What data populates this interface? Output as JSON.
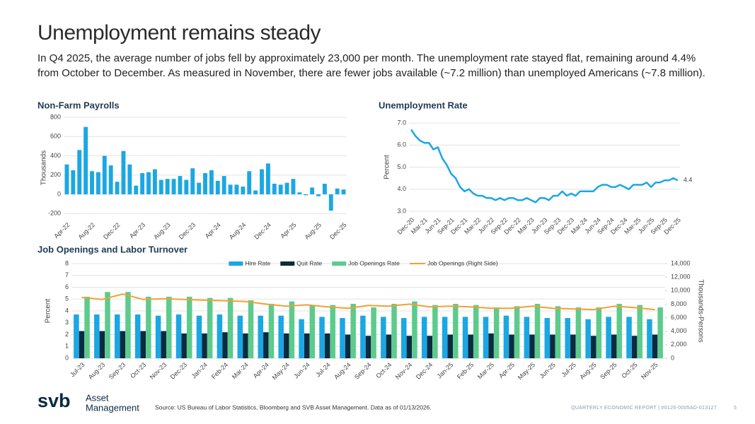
{
  "header": {
    "title": "Unemployment remains steady",
    "subtitle": "In Q4 2025, the average number of jobs fell by approximately 23,000 per month. The unemployment rate stayed flat, remaining around 4.4% from October to December. As measured in November, there are fewer jobs available (~7.2 million) than unemployed Americans (~7.8 million)."
  },
  "chart_data": [
    {
      "type": "bar",
      "title": "Non-Farm Payrolls",
      "y_label": "Thousands",
      "color": "#1ba7e4",
      "grid": true,
      "categories": [
        "Apr-22",
        null,
        null,
        null,
        "Aug-22",
        null,
        null,
        null,
        "Dec-22",
        null,
        null,
        null,
        "Apr-23",
        null,
        null,
        null,
        "Aug-23",
        null,
        null,
        null,
        "Dec-23",
        null,
        null,
        null,
        "Apr-24",
        null,
        null,
        null,
        "Aug-24",
        null,
        null,
        null,
        "Dec-24",
        null,
        null,
        null,
        "Apr-25",
        null,
        null,
        null,
        "Aug-25",
        null,
        null,
        null,
        "Dec-25"
      ],
      "values": [
        310,
        250,
        460,
        700,
        240,
        230,
        400,
        300,
        130,
        450,
        310,
        90,
        220,
        230,
        260,
        150,
        160,
        160,
        190,
        150,
        270,
        120,
        220,
        250,
        140,
        190,
        100,
        100,
        80,
        240,
        40,
        260,
        320,
        110,
        100,
        120,
        160,
        20,
        -10,
        70,
        -20,
        110,
        -170,
        60,
        50
      ],
      "ylim": [
        -250,
        800
      ],
      "yticks": [
        -200,
        0,
        200,
        400,
        600,
        800
      ]
    },
    {
      "type": "line",
      "title": "Unemployment Rate",
      "y_label": "Percent",
      "color": "#1ba7e4",
      "grid": true,
      "label_last": true,
      "categories": [
        "Dec-20",
        null,
        null,
        "Mar-21",
        null,
        null,
        "Jun-21",
        null,
        null,
        "Sep-21",
        null,
        null,
        "Dec-21",
        null,
        null,
        "Mar-22",
        null,
        null,
        "Jun-22",
        null,
        null,
        "Sep-22",
        null,
        null,
        "Dec-22",
        null,
        null,
        "Mar-23",
        null,
        null,
        "Jun-23",
        null,
        null,
        "Sep-23",
        null,
        null,
        "Dec-23",
        null,
        null,
        "Mar-24",
        null,
        null,
        "Jun-24",
        null,
        null,
        "Sep-24",
        null,
        null,
        "Dec-24",
        null,
        null,
        "Mar-25",
        null,
        null,
        "Jun-25",
        null,
        null,
        "Sep-25",
        null,
        null,
        "Dec-25"
      ],
      "values": [
        6.7,
        6.4,
        6.2,
        6.1,
        6.1,
        5.8,
        5.9,
        5.4,
        5.1,
        4.7,
        4.5,
        4.1,
        3.9,
        4.0,
        3.8,
        3.7,
        3.7,
        3.6,
        3.6,
        3.5,
        3.6,
        3.5,
        3.6,
        3.6,
        3.5,
        3.5,
        3.6,
        3.5,
        3.4,
        3.6,
        3.6,
        3.5,
        3.7,
        3.7,
        3.9,
        3.7,
        3.8,
        3.7,
        3.9,
        3.9,
        3.9,
        3.9,
        4.1,
        4.2,
        4.2,
        4.1,
        4.1,
        4.2,
        4.1,
        4.0,
        4.2,
        4.2,
        4.2,
        4.3,
        4.1,
        4.3,
        4.3,
        4.4,
        4.4,
        4.5,
        4.4
      ],
      "ylim": [
        2.9,
        7.1
      ],
      "yticks": [
        {
          "value": 3,
          "label": "3.0"
        },
        {
          "value": 4,
          "label": "4.0"
        },
        {
          "value": 5,
          "label": "5.0"
        },
        {
          "value": 6,
          "label": "6.0"
        },
        {
          "value": 7,
          "label": "7.0"
        }
      ]
    },
    {
      "type": "combo",
      "title": "Job Openings and Labor Turnover",
      "y_label": "Percent",
      "y2_label": "Thousands-Persons",
      "grid": true,
      "legend": "top",
      "categories": [
        "Jul-23",
        "Aug-23",
        "Sep-23",
        "Oct-23",
        "Nov-23",
        "Dec-23",
        "Jan-24",
        "Feb-24",
        "Mar-24",
        "Apr-24",
        "May-24",
        "Jun-24",
        "Jul-24",
        "Aug-24",
        "Sep-24",
        "Oct-24",
        "Nov-24",
        "Dec-24",
        "Jan-25",
        "Feb-25",
        "Mar-25",
        "Apr-25",
        "May-25",
        "Jun-25",
        "Jul-25",
        "Aug-25",
        "Sep-25",
        "Oct-25",
        "Nov-25"
      ],
      "series": [
        {
          "name": "Hire Rate",
          "type": "bar",
          "color": "#1ba7e4",
          "values": [
            3.7,
            3.7,
            3.7,
            3.7,
            3.6,
            3.7,
            3.6,
            3.7,
            3.6,
            3.6,
            3.6,
            3.3,
            3.5,
            3.4,
            3.6,
            3.5,
            3.4,
            3.5,
            3.5,
            3.5,
            3.5,
            3.6,
            3.5,
            3.4,
            3.4,
            3.3,
            3.5,
            3.5,
            3.3
          ]
        },
        {
          "name": "Quit Rate",
          "type": "bar",
          "color": "#0b2b40",
          "values": [
            2.3,
            2.3,
            2.3,
            2.3,
            2.3,
            2.1,
            2.1,
            2.2,
            2.1,
            2.2,
            2.1,
            2.1,
            2.1,
            2.0,
            1.9,
            2.0,
            1.9,
            1.9,
            2.0,
            2.0,
            2.1,
            2.0,
            2.0,
            2.0,
            2.0,
            1.9,
            2.0,
            1.9,
            2.0
          ]
        },
        {
          "name": "Job Openings Rate",
          "type": "bar",
          "color": "#5ccb8c",
          "values": [
            5.2,
            5.6,
            5.6,
            5.2,
            5.2,
            5.2,
            5.1,
            5.1,
            4.9,
            4.6,
            4.8,
            4.5,
            4.5,
            4.6,
            4.3,
            4.6,
            4.8,
            4.5,
            4.6,
            4.5,
            4.3,
            4.4,
            4.6,
            4.4,
            4.3,
            4.3,
            4.6,
            4.5,
            4.3
          ]
        },
        {
          "name": "Job Openings (Right Side)",
          "type": "line",
          "axis": "y2",
          "color": "#f2a033",
          "values": [
            9000,
            8700,
            9500,
            8700,
            8800,
            8700,
            8600,
            8500,
            8400,
            8000,
            7700,
            7900,
            7600,
            7400,
            7800,
            7700,
            8000,
            7600,
            7700,
            7600,
            7400,
            7400,
            7700,
            7400,
            7300,
            7200,
            7700,
            7500,
            7200
          ]
        }
      ],
      "ylim": [
        0,
        8
      ],
      "yticks": [
        0,
        1,
        2,
        3,
        4,
        5,
        6,
        7,
        8
      ],
      "y2lim": [
        0,
        14000
      ],
      "y2ticks": [
        0,
        {
          "value": 2000,
          "label": "2,000"
        },
        {
          "value": 4000,
          "label": "4,000"
        },
        {
          "value": 6000,
          "label": "6,000"
        },
        {
          "value": 8000,
          "label": "8,000"
        },
        {
          "value": 10000,
          "label": "10,000"
        },
        {
          "value": 12000,
          "label": "12,000"
        },
        {
          "value": 14000,
          "label": "14,000"
        }
      ]
    }
  ],
  "footer": {
    "logo": "svb",
    "brand_line1": "Asset",
    "brand_line2": "Management",
    "source": "Source: US Bureau of Labor Statistics, Bloomberg and SVB Asset Management. Data as of 01/13/2026.",
    "report": "QUARTERLY ECONOMIC REPORT | #0126-0005AD-013127",
    "page": "5"
  }
}
